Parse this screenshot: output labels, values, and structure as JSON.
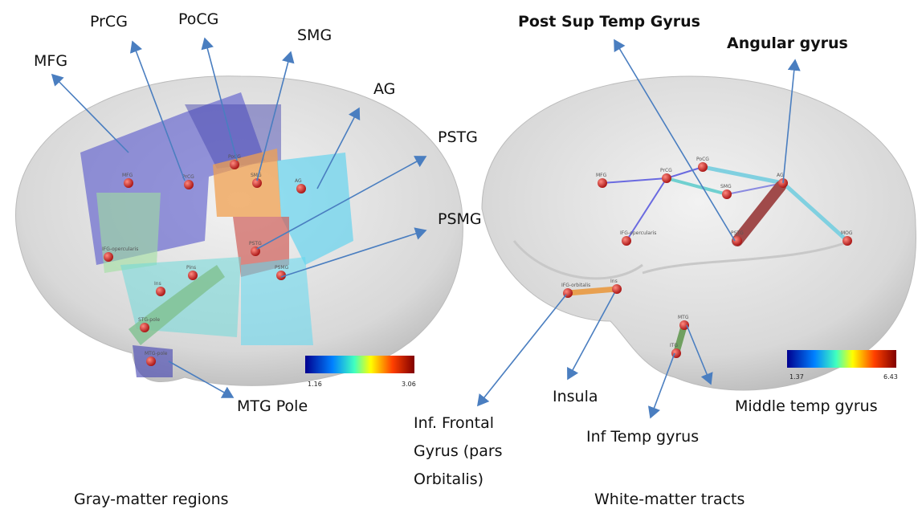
{
  "left_panel": {
    "caption": "Gray-matter regions",
    "labels": [
      "MFG",
      "PrCG",
      "PoCG",
      "SMG",
      "AG",
      "PSTG",
      "PSMG",
      "MTG Pole"
    ],
    "node_labels": [
      "MFG",
      "PrCG",
      "PoCG",
      "SMG",
      "AG",
      "IFG-opercularis",
      "PSTG",
      "PSMG",
      "Ins",
      "Pins",
      "STG-pole",
      "MTG-pole"
    ],
    "colorbar": {
      "min": "1.16",
      "max": "3.06"
    }
  },
  "right_panel": {
    "caption": "White-matter tracts",
    "labels": [
      "Post Sup Temp Gyrus",
      "Angular gyrus",
      "Insula",
      "Inf Temp gyrus",
      "Middle temp gyrus"
    ],
    "ifg_label": [
      "Inf. Frontal",
      "Gyrus (pars",
      "Orbitalis)"
    ],
    "node_labels": [
      "MFG",
      "PrCG",
      "PoCG",
      "SMG",
      "AG",
      "IFG-opercularis",
      "IFG-orbitalis",
      "Ins",
      "PSTG",
      "MOG",
      "MTG",
      "ITG"
    ],
    "colorbar": {
      "min": "1.37",
      "max": "6.43"
    }
  }
}
